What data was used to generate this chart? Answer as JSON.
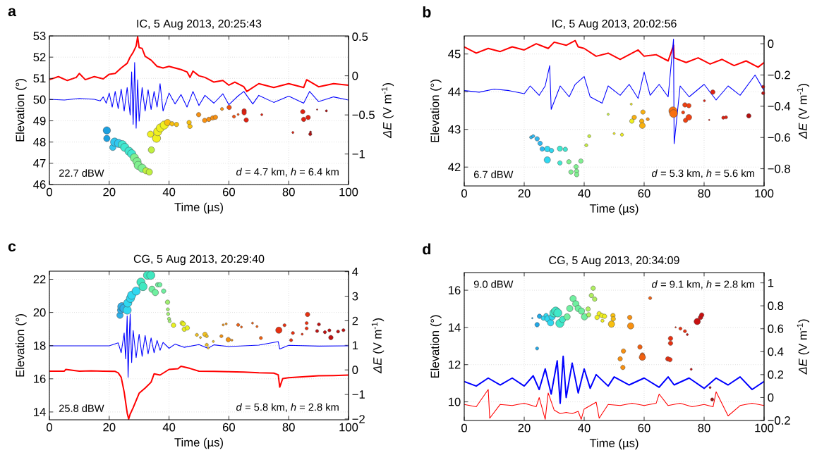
{
  "chart_data": [
    {
      "type": "bubble",
      "title": "IC, 5 Aug 2013, 20:25:43",
      "xlabel": "Time (µs)",
      "ylabel": "Elevation (°)",
      "y2label": "*ΔE* (V m$^{-1}$)",
      "xlim": [
        0,
        100
      ],
      "xticks": [
        0,
        20,
        40,
        60,
        80,
        100
      ],
      "ylim": [
        46,
        53
      ],
      "yticks": [
        46,
        47,
        48,
        49,
        50,
        51,
        52,
        53
      ],
      "y2lim": [
        -1.39,
        0.51
      ],
      "y2ticks": [
        {
          "value": -1,
          "label": "−1"
        },
        {
          "value": -0.5,
          "label": "−0.5"
        },
        0,
        0.5
      ],
      "grid": true,
      "annotations": [
        "a",
        "22.7 dBW",
        "*d* = 4.7 km, *h* = 6.4 km"
      ],
      "series": [
        {
          "type": "line",
          "axis": "y2",
          "color": "#ff0000",
          "x": [
            0,
            3,
            6,
            9,
            10,
            12,
            15,
            18,
            20,
            22,
            24,
            26,
            27,
            28,
            29,
            29.5,
            30,
            31,
            32,
            34,
            36,
            38,
            40,
            42,
            44,
            46,
            47,
            48,
            50,
            52,
            55,
            58,
            60,
            62,
            65,
            66,
            70,
            75,
            80,
            85,
            86,
            90,
            95,
            100
          ],
          "values": [
            -0.05,
            -0.01,
            -0.06,
            -0.02,
            0.03,
            -0.05,
            -0.01,
            -0.04,
            0.02,
            0.03,
            0.1,
            0.16,
            0.24,
            0.3,
            0.38,
            0.5,
            0.36,
            0.35,
            0.25,
            0.2,
            0.12,
            0.1,
            0.12,
            0.1,
            0.08,
            0.05,
            -0.02,
            0.06,
            0.0,
            -0.02,
            -0.08,
            -0.06,
            -0.12,
            -0.08,
            -0.14,
            -0.2,
            -0.1,
            -0.15,
            -0.1,
            -0.15,
            -0.05,
            -0.14,
            -0.1,
            -0.12
          ]
        },
        {
          "type": "line",
          "axis": "y2",
          "color": "#0000ff",
          "x": [
            0,
            5,
            10,
            15,
            17,
            18,
            19,
            20,
            21,
            22,
            23,
            24,
            25,
            26,
            27,
            27.5,
            28,
            28.5,
            29,
            29.5,
            30,
            31,
            32,
            33,
            34,
            35,
            36,
            37,
            38,
            40,
            42,
            44,
            46,
            48,
            50,
            52,
            55,
            58,
            60,
            63,
            65,
            68,
            70,
            75,
            80,
            85,
            87,
            90,
            95,
            100
          ],
          "values": [
            -0.3,
            -0.31,
            -0.29,
            -0.3,
            -0.32,
            -0.27,
            -0.35,
            -0.22,
            -0.4,
            -0.2,
            -0.42,
            -0.17,
            -0.45,
            -0.15,
            -0.5,
            0.05,
            -0.62,
            0.17,
            -0.67,
            -0.05,
            -0.58,
            -0.15,
            -0.45,
            -0.18,
            -0.43,
            -0.2,
            -0.4,
            -0.1,
            -0.45,
            -0.22,
            -0.36,
            -0.24,
            -0.4,
            -0.2,
            -0.38,
            -0.25,
            -0.35,
            -0.23,
            -0.37,
            -0.26,
            -0.2,
            -0.36,
            -0.25,
            -0.34,
            -0.26,
            -0.35,
            -0.2,
            -0.33,
            -0.27,
            -0.31
          ]
        },
        {
          "x": [
            19.2,
            19.2,
            21.2,
            21.8,
            23.1,
            24.4,
            25.2,
            26.6,
            27.5,
            28.4,
            29.3,
            29.7,
            31.0,
            32.3,
            33.4,
            34.1,
            33.8,
            35.8,
            36.2,
            37.1,
            38.4,
            39.5,
            41.0,
            42.5,
            46.7,
            47.0,
            49.9,
            51.9,
            53.3,
            54.6,
            55.5,
            57.7,
            60.1,
            61.7,
            63.1,
            65.1,
            65.1,
            65.8,
            71.0,
            81.4,
            84.7,
            85.0,
            86.5,
            87.3,
            87.2,
            89.5,
            92.6
          ],
          "values": [
            48.55,
            48.17,
            47.75,
            48.0,
            47.94,
            47.88,
            47.75,
            47.57,
            47.45,
            47.26,
            47.08,
            46.9,
            46.77,
            46.65,
            46.59,
            47.63,
            48.37,
            48.18,
            48.49,
            48.67,
            48.8,
            48.92,
            48.86,
            48.83,
            48.92,
            48.74,
            49.29,
            49.02,
            49.07,
            49.14,
            49.17,
            49.56,
            49.63,
            49.2,
            49.3,
            49.47,
            49.38,
            49.04,
            49.29,
            48.45,
            49.43,
            49.07,
            49.16,
            48.47,
            48.37,
            49.53,
            49.47
          ],
          "sizes": [
            0.8,
            0.6,
            0.6,
            1,
            1,
            1,
            1,
            1,
            1,
            1,
            1,
            1,
            1,
            0.6,
            0.6,
            0.6,
            0.6,
            1,
            1,
            1,
            1,
            0.6,
            0.3,
            0.3,
            0.3,
            0.3,
            0.3,
            0.3,
            0.3,
            0.3,
            0.3,
            0.15,
            0.3,
            0.15,
            0.07,
            0.3,
            0.3,
            0.3,
            0.07,
            0.07,
            0.3,
            0.3,
            0.3,
            0.07,
            0.15,
            0.03,
            0.07
          ],
          "colors": [
            "#1ca0e0",
            "#1ca0e0",
            "#30c8f0",
            "#30c8f0",
            "#30c8f0",
            "#40e8d0",
            "#40e8d0",
            "#40e8d0",
            "#40e8d0",
            "#80f090",
            "#80f090",
            "#80f090",
            "#80f090",
            "#c0f040",
            "#c0f040",
            "#c0f040",
            "#f0f020",
            "#f0f020",
            "#f0f020",
            "#f0f020",
            "#f0f020",
            "#f8c010",
            "#f8c010",
            "#f8c010",
            "#f8c010",
            "#f8c010",
            "#f89010",
            "#f89010",
            "#f89010",
            "#f89010",
            "#f89010",
            "#f89010",
            "#f05010",
            "#f05010",
            "#f05010",
            "#e02010",
            "#e02010",
            "#e02010",
            "#e02010",
            "#e02010",
            "#e02010",
            "#e02010",
            "#e02010",
            "#b01010",
            "#b01010",
            "#b01010",
            "#b01010"
          ]
        }
      ]
    },
    {
      "type": "bubble",
      "title": "IC, 5 Aug 2013, 20:02:56",
      "xlabel": "Time (µs)",
      "ylabel": "Elevation (°)",
      "y2label": "*ΔE* (V m$^{-1}$)",
      "xlim": [
        0,
        100
      ],
      "xticks": [
        0,
        20,
        40,
        60,
        80,
        100
      ],
      "ylim": [
        41.5,
        45.48
      ],
      "yticks": [
        42,
        43,
        44,
        45
      ],
      "y2lim": [
        -0.91,
        0.05
      ],
      "y2ticks": [
        {
          "value": -0.8,
          "label": "−0.8"
        },
        {
          "value": -0.6,
          "label": "−0.6"
        },
        {
          "value": -0.4,
          "label": "−0.4"
        },
        {
          "value": -0.2,
          "label": "−0.2"
        },
        0
      ],
      "grid": true,
      "annotations": [
        "b",
        "6.7 dBW",
        "*d* = 5.3 km, *h* = 5.6 km"
      ],
      "series": [
        {
          "type": "line",
          "axis": "y2",
          "color": "#ff0000",
          "x": [
            0,
            4,
            8,
            12,
            16,
            20,
            24,
            28,
            30,
            34,
            37,
            38,
            40,
            44,
            48,
            52,
            56,
            58,
            60,
            64,
            68,
            69.8,
            70,
            74,
            78,
            82,
            86,
            90,
            94,
            98,
            100
          ],
          "values": [
            -0.02,
            -0.06,
            -0.03,
            -0.05,
            -0.02,
            -0.04,
            0.0,
            -0.03,
            0.01,
            -0.01,
            0.02,
            -0.02,
            -0.03,
            -0.08,
            -0.06,
            -0.1,
            -0.06,
            -0.04,
            -0.08,
            -0.07,
            -0.11,
            -0.01,
            -0.09,
            -0.12,
            -0.09,
            -0.13,
            -0.1,
            -0.14,
            -0.11,
            -0.15,
            -0.12
          ]
        },
        {
          "type": "line",
          "axis": "y2",
          "color": "#0000ff",
          "x": [
            0,
            5,
            10,
            15,
            20,
            22,
            25,
            27,
            28.5,
            29,
            32,
            35,
            37,
            40,
            42,
            46,
            48,
            52,
            55,
            58,
            60,
            62,
            65,
            68,
            69.8,
            70,
            72,
            75,
            80,
            84,
            88,
            92,
            97,
            100
          ],
          "values": [
            -0.3,
            -0.31,
            -0.29,
            -0.3,
            -0.32,
            -0.27,
            -0.33,
            -0.27,
            -0.14,
            -0.42,
            -0.27,
            -0.34,
            -0.26,
            -0.21,
            -0.34,
            -0.38,
            -0.27,
            -0.33,
            -0.26,
            -0.35,
            -0.18,
            -0.33,
            -0.26,
            -0.34,
            0.03,
            -0.64,
            -0.27,
            -0.34,
            -0.26,
            -0.36,
            -0.27,
            -0.33,
            -0.2,
            -0.3
          ]
        },
        {
          "x": [
            22.3,
            23.0,
            24.3,
            25.3,
            26.0,
            27.7,
            29.1,
            27.7,
            31.9,
            33.7,
            31.9,
            34.9,
            35.6,
            37.3,
            37.5,
            37.5,
            38.9,
            40.7,
            41.7,
            48.0,
            50.0,
            52.6,
            55.7,
            55.9,
            56.7,
            59.6,
            59.2,
            59.4,
            61.2,
            69.6,
            69.8,
            73.0,
            73.6,
            74.9,
            73.8,
            74.9,
            80.1,
            81.7,
            82.9,
            86.4,
            87.3,
            94.9,
            99.7,
            99.7
          ],
          "values": [
            42.79,
            42.82,
            42.75,
            42.63,
            42.48,
            42.48,
            42.44,
            42.19,
            42.49,
            42.47,
            42.11,
            42.14,
            41.87,
            42.01,
            41.89,
            41.8,
            42.16,
            42.58,
            42.82,
            43.4,
            42.89,
            42.86,
            43.67,
            43.22,
            43.32,
            43.46,
            43.22,
            43.1,
            43.27,
            43.49,
            43.42,
            43.45,
            43.65,
            43.63,
            43.24,
            43.32,
            43.76,
            43.25,
            43.99,
            43.31,
            43.32,
            43.36,
            44.13,
            43.96
          ],
          "sizes": [
            0.15,
            0.15,
            0.3,
            0.3,
            0.3,
            0.5,
            0.3,
            0.6,
            0.4,
            0.3,
            0.3,
            0.3,
            0.3,
            0.3,
            0.3,
            0.3,
            0.3,
            0.15,
            0.15,
            0.07,
            0.07,
            0.15,
            0.07,
            0.3,
            0.3,
            0.3,
            0.3,
            0.5,
            0.15,
            1,
            0.9,
            0.15,
            0.3,
            0.3,
            0.3,
            0.5,
            0.07,
            0.03,
            0.3,
            0.15,
            0.15,
            0.3,
            0.15,
            0.15
          ],
          "colors": [
            "#30b8f0",
            "#30b8f0",
            "#30b8f0",
            "#30b8f0",
            "#30b8f0",
            "#30d8f0",
            "#30d8f0",
            "#30d8f0",
            "#40e8d0",
            "#40e8d0",
            "#40e8d0",
            "#80f090",
            "#80f090",
            "#80f090",
            "#80f090",
            "#80f090",
            "#80f090",
            "#c8f040",
            "#c8f040",
            "#c8f040",
            "#f0f020",
            "#f0f020",
            "#f0f020",
            "#f0f020",
            "#f8b010",
            "#f8b010",
            "#f8b010",
            "#f8b010",
            "#f89010",
            "#f87010",
            "#f87010",
            "#f04010",
            "#f04010",
            "#f04010",
            "#f04010",
            "#f04010",
            "#e02010",
            "#e02010",
            "#e02010",
            "#e02010",
            "#e02010",
            "#b01010",
            "#b01010",
            "#b01010"
          ]
        }
      ]
    },
    {
      "type": "bubble",
      "title": "CG, 5 Aug 2013, 20:29:40",
      "xlabel": "Time (µs)",
      "ylabel": "Elevation (°)",
      "y2label": "*ΔE* (V m$^{-1}$)",
      "xlim": [
        0,
        100
      ],
      "xticks": [
        0,
        20,
        40,
        60,
        80,
        100
      ],
      "ylim": [
        13.53,
        22.49
      ],
      "yticks": [
        14,
        16,
        18,
        20,
        22
      ],
      "y2lim": [
        -2.03,
        4.02
      ],
      "y2ticks": [
        {
          "value": -2,
          "label": "−2"
        },
        {
          "value": -1,
          "label": "−1"
        },
        0,
        1,
        2,
        3,
        4
      ],
      "grid": true,
      "annotations": [
        "c",
        "25.8 dBW",
        "*d* = 5.8 km, *h* = 2.8 km"
      ],
      "series": [
        {
          "type": "line",
          "axis": "y2",
          "color": "#ff0000",
          "x": [
            0,
            5,
            5.5,
            10,
            14,
            18,
            22,
            23,
            24,
            25,
            26,
            26.5,
            27,
            28,
            30,
            32,
            34,
            35,
            37,
            40,
            43,
            44,
            47,
            50,
            55,
            60,
            65,
            70,
            75,
            76.5,
            77,
            78,
            80,
            85,
            90,
            95,
            100
          ],
          "values": [
            -0.05,
            -0.05,
            0.02,
            -0.05,
            -0.04,
            -0.05,
            -0.06,
            -0.12,
            -0.3,
            -0.9,
            -1.75,
            -2.0,
            -1.8,
            -1.54,
            -0.95,
            -0.74,
            -0.5,
            -0.16,
            -0.21,
            0.02,
            0.05,
            0.15,
            0.06,
            -0.05,
            -0.06,
            -0.07,
            -0.09,
            -0.12,
            -0.13,
            -0.2,
            -0.7,
            -0.35,
            -0.32,
            -0.28,
            -0.24,
            -0.23,
            -0.21
          ]
        },
        {
          "type": "line",
          "axis": "y2",
          "color": "#0000ff",
          "x": [
            0,
            10,
            20,
            23,
            24,
            25,
            25.5,
            26,
            26.3,
            26.8,
            27,
            27.5,
            28,
            29,
            30,
            31,
            32,
            33,
            34,
            35,
            36,
            37,
            38,
            40,
            42,
            45,
            50,
            53,
            55,
            60,
            70,
            76.5,
            77,
            80,
            90,
            100
          ],
          "values": [
            0.98,
            0.98,
            0.98,
            1.1,
            0.7,
            1.5,
            0.45,
            2.2,
            -0.3,
            1.7,
            2.28,
            0.3,
            1.6,
            0.5,
            1.45,
            0.55,
            1.4,
            0.65,
            1.3,
            0.7,
            1.2,
            0.8,
            1.12,
            0.88,
            1.05,
            0.92,
            1.03,
            0.88,
            1.02,
            0.95,
            1.01,
            1.15,
            0.85,
            1.0,
            0.97,
            0.98
          ]
        },
        {
          "x": [
            23.6,
            23.8,
            24.2,
            24.9,
            26.0,
            26.2,
            27.1,
            27.5,
            29.0,
            30.6,
            31.3,
            32.8,
            33.9,
            34.3,
            35.4,
            36.2,
            36.9,
            38.2,
            39.5,
            39.6,
            39.7,
            40.0,
            40.2,
            41.5,
            44.4,
            44.8,
            45.1,
            46.1,
            49.3,
            50.5,
            52.0,
            52.6,
            52.6,
            53.1,
            54.8,
            57.5,
            59.8,
            61.0,
            58.1,
            59.1,
            63.1,
            64.2,
            67.9,
            69.4,
            70.7,
            76.7,
            78.6,
            80.8,
            81.4,
            84.5,
            86.0,
            86.0,
            86.3,
            89.5,
            90.1,
            92.1,
            93.6,
            94.1,
            96.5,
            98.3
          ],
          "values": [
            19.83,
            20.14,
            20.35,
            20.25,
            20.14,
            20.57,
            20.85,
            21.04,
            21.29,
            21.83,
            21.56,
            22.24,
            22.24,
            21.4,
            21.2,
            21.67,
            21.67,
            21.29,
            20.62,
            20.19,
            19.91,
            19.62,
            19.47,
            19.23,
            19.36,
            19.31,
            18.99,
            19.07,
            18.65,
            18.49,
            18.68,
            18.57,
            18.05,
            17.86,
            18.25,
            18.57,
            18.36,
            18.33,
            19.25,
            19.31,
            19.25,
            19.12,
            19.36,
            19.15,
            18.46,
            18.93,
            19.23,
            18.33,
            18.76,
            18.69,
            19.04,
            19.36,
            19.88,
            18.88,
            19.28,
            18.81,
            18.92,
            18.49,
            18.85,
            18.93
          ],
          "sizes": [
            0.6,
            0.6,
            1,
            1,
            1,
            1,
            1,
            1,
            1,
            1,
            1,
            1,
            1,
            0.6,
            0.6,
            0.3,
            0.3,
            0.3,
            0.3,
            0.15,
            0.15,
            0.15,
            0.15,
            0.3,
            0.3,
            0.3,
            0.3,
            0.3,
            0.15,
            0.07,
            0.3,
            0.15,
            0.15,
            0.07,
            0.07,
            0.15,
            0.3,
            0.07,
            0.07,
            0.07,
            0.15,
            0.07,
            0.07,
            0.07,
            0.15,
            0.6,
            0.15,
            0.15,
            0.15,
            0.07,
            0.15,
            0.15,
            0.3,
            0.15,
            0.15,
            0.15,
            0.15,
            0.3,
            0.15,
            0.15
          ],
          "colors": [
            "#30b0e8",
            "#30b0e8",
            "#30b0e8",
            "#30b0e8",
            "#30d8f0",
            "#30d8f0",
            "#30d8f0",
            "#30d8f0",
            "#30d8f0",
            "#40e8c0",
            "#40e8c0",
            "#40e8c0",
            "#40e8c0",
            "#70f0a0",
            "#70f0a0",
            "#70f0a0",
            "#70f0a0",
            "#70f0a0",
            "#a0f070",
            "#a0f070",
            "#a0f070",
            "#a0f070",
            "#a0f070",
            "#e8f020",
            "#e8f020",
            "#e8f020",
            "#e8f020",
            "#e8f020",
            "#f0c020",
            "#f0c020",
            "#f0c020",
            "#f0c020",
            "#f0c020",
            "#f0c020",
            "#f0c020",
            "#f09010",
            "#f09010",
            "#f09010",
            "#f09010",
            "#f09010",
            "#f06010",
            "#f06010",
            "#f06010",
            "#f06010",
            "#f06010",
            "#e83010",
            "#e83010",
            "#e83010",
            "#e83010",
            "#e83010",
            "#e83010",
            "#e83010",
            "#e83010",
            "#c01010",
            "#c01010",
            "#c01010",
            "#c01010",
            "#c01010",
            "#c01010",
            "#c01010"
          ]
        }
      ]
    },
    {
      "type": "bubble",
      "title": "CG, 5 Aug 2013, 20:34:09",
      "xlabel": "Time (µs)",
      "ylabel": "Elevation (°)",
      "y2label": "*ΔE* (V m$^{-1}$)",
      "xlim": [
        0,
        100
      ],
      "xticks": [
        0,
        20,
        40,
        60,
        80,
        100
      ],
      "ylim": [
        9.0,
        16.95
      ],
      "yticks": [
        10,
        12,
        14,
        16
      ],
      "y2lim": [
        -0.2,
        1.09
      ],
      "y2ticks": [
        {
          "value": -0.2,
          "label": "−0.2"
        },
        0,
        0.2,
        0.4,
        0.6,
        0.8,
        1
      ],
      "grid": true,
      "annotations": [
        "d",
        "9.0 dBW",
        "*d* = 9.1 km, *h* = 2.8 km"
      ],
      "series": [
        {
          "type": "line",
          "axis": "y2",
          "color": "#0000ff",
          "x": [
            0,
            4,
            8,
            12,
            16,
            20,
            23,
            25,
            27,
            29,
            31,
            32,
            33,
            34,
            36,
            38,
            40,
            42,
            44,
            48,
            50,
            55,
            60,
            65,
            68,
            70,
            75,
            80,
            84,
            88,
            92,
            96,
            100
          ],
          "values": [
            0.14,
            0.1,
            0.17,
            0.11,
            0.17,
            0.1,
            0.19,
            0.07,
            0.25,
            0.03,
            0.32,
            -0.05,
            0.36,
            0.0,
            0.3,
            0.04,
            0.25,
            0.08,
            0.2,
            0.1,
            0.18,
            0.11,
            0.17,
            0.09,
            0.18,
            0.11,
            0.17,
            0.08,
            0.17,
            0.11,
            0.18,
            0.07,
            0.14
          ]
        },
        {
          "type": "line",
          "axis": "y2",
          "color": "#ff0000",
          "x": [
            0,
            4,
            8,
            8.5,
            12,
            16,
            20,
            24,
            25,
            27,
            28,
            30,
            32,
            34,
            36,
            38,
            39,
            40,
            44,
            45,
            48,
            52,
            56,
            60,
            64,
            65,
            68,
            72,
            76,
            80,
            83,
            84,
            88,
            92,
            96,
            100
          ],
          "values": [
            -0.06,
            -0.08,
            0.07,
            -0.18,
            -0.06,
            -0.07,
            -0.05,
            -0.08,
            0.0,
            -0.19,
            0.04,
            -0.11,
            -0.14,
            -0.13,
            -0.14,
            -0.12,
            -0.19,
            -0.1,
            -0.04,
            -0.18,
            -0.06,
            -0.07,
            -0.05,
            -0.07,
            -0.05,
            0.03,
            -0.07,
            -0.05,
            -0.08,
            -0.06,
            -0.08,
            0.05,
            -0.16,
            -0.07,
            -0.05,
            -0.07
          ]
        },
        {
          "x": [
            22.7,
            24.3,
            24.3,
            25.1,
            26.4,
            27.3,
            27.9,
            28.8,
            29.3,
            29.9,
            30.5,
            31.2,
            31.9,
            32.8,
            34.3,
            35.2,
            36.3,
            37.2,
            38.0,
            39.1,
            40.1,
            41.3,
            41.5,
            42.4,
            43.0,
            43.5,
            45.0,
            44.3,
            45.9,
            46.1,
            46.8,
            49.1,
            49.6,
            49.7,
            52.0,
            53.1,
            52.9,
            55.2,
            55.5,
            58.6,
            59.4,
            59.4,
            62.0,
            67.9,
            68.6,
            68.8,
            68.8,
            70.5,
            72.1,
            73.6,
            74.4,
            75.7,
            77.7,
            78.8,
            79.2,
            82.0,
            82.7
          ],
          "values": [
            14.5,
            14.15,
            12.87,
            14.6,
            14.5,
            14.64,
            14.46,
            14.25,
            14.57,
            14.78,
            14.88,
            14.78,
            14.22,
            14.43,
            14.57,
            15.02,
            15.55,
            15.27,
            15.02,
            14.88,
            14.57,
            14.99,
            14.68,
            15.72,
            16.11,
            15.52,
            14.74,
            14.54,
            14.64,
            14.36,
            14.6,
            14.18,
            14.64,
            14.46,
            12.31,
            12.73,
            11.85,
            14.54,
            14.08,
            12.95,
            12.52,
            12.4,
            15.58,
            12.31,
            12.27,
            13.41,
            13.15,
            14.01,
            13.94,
            13.8,
            13.62,
            11.75,
            14.32,
            14.54,
            14.67,
            10.77,
            10.13
          ],
          "sizes": [
            0.03,
            0.3,
            0.15,
            0.3,
            0.3,
            0.3,
            0.6,
            0.6,
            0.6,
            1,
            1,
            1,
            1,
            0.6,
            0.6,
            0.6,
            0.6,
            0.6,
            0.6,
            0.6,
            0.6,
            0.3,
            0.3,
            0.3,
            0.3,
            0.3,
            0.3,
            0.3,
            0.3,
            0.15,
            0.3,
            0.6,
            0.3,
            0.3,
            0.3,
            0.3,
            0.3,
            0.3,
            0.6,
            0.3,
            0.3,
            0.6,
            0.15,
            0.3,
            0.3,
            0.3,
            0.3,
            0.03,
            0.15,
            0.15,
            0.07,
            0.07,
            0.6,
            0.3,
            0.3,
            0.07,
            0.15
          ],
          "colors": [
            "#20a8e8",
            "#20a8e8",
            "#20a8e8",
            "#20a8e8",
            "#30d8f0",
            "#30d8f0",
            "#30d8f0",
            "#30d8f0",
            "#30d8f0",
            "#40e8c8",
            "#40e8c8",
            "#40e8c8",
            "#40e8c8",
            "#40e8c8",
            "#70f0a0",
            "#70f0a0",
            "#70f0a0",
            "#70f0a0",
            "#70f0a0",
            "#70f0a0",
            "#70f0a0",
            "#b0f060",
            "#b0f060",
            "#b0f060",
            "#b0f060",
            "#b0f060",
            "#f0f020",
            "#f0f020",
            "#f0f020",
            "#f0f020",
            "#f0f020",
            "#f8c010",
            "#f8c010",
            "#f8c010",
            "#f89010",
            "#f89010",
            "#f89010",
            "#f89010",
            "#f89010",
            "#f06010",
            "#f06010",
            "#f06010",
            "#f06010",
            "#e83010",
            "#e83010",
            "#e83010",
            "#e83010",
            "#e83010",
            "#e83010",
            "#e83010",
            "#c81010",
            "#c81010",
            "#c81010",
            "#c81010",
            "#c81010",
            "#a01010",
            "#a01010"
          ]
        }
      ]
    }
  ]
}
